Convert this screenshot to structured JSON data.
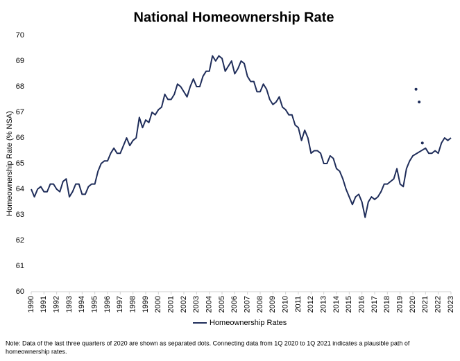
{
  "chart_data": {
    "type": "line",
    "title": "National Homeownership Rate",
    "y_label": "Homeownership Rate (% NSA)",
    "note": [
      "Note: Data of the last three quarters of 2020  are shown as separated dots. Connecting data from 1Q 2020  to 1Q 2021  indicates a plausible path of",
      "homeownership rates."
    ],
    "xlim": [
      1990,
      2023
    ],
    "xticks": [
      1990,
      1991,
      1992,
      1993,
      1994,
      1995,
      1996,
      1997,
      1998,
      1999,
      2000,
      2001,
      2002,
      2003,
      2004,
      2005,
      2006,
      2007,
      2008,
      2009,
      2010,
      2011,
      2012,
      2013,
      2014,
      2015,
      2016,
      2017,
      2018,
      2019,
      2020,
      2021,
      2022,
      2023
    ],
    "ylim": [
      60,
      70
    ],
    "yticks": [
      60,
      61,
      62,
      63,
      64,
      65,
      66,
      67,
      68,
      69,
      70
    ],
    "legend": "bottom",
    "series": [
      {
        "name": "Homeownership Rates",
        "color": "#1f2d5a",
        "style": "line",
        "x": [
          1990,
          1990.25,
          1990.5,
          1990.75,
          1991,
          1991.25,
          1991.5,
          1991.75,
          1992,
          1992.25,
          1992.5,
          1992.75,
          1993,
          1993.25,
          1993.5,
          1993.75,
          1994,
          1994.25,
          1994.5,
          1994.75,
          1995,
          1995.25,
          1995.5,
          1995.75,
          1996,
          1996.25,
          1996.5,
          1996.75,
          1997,
          1997.25,
          1997.5,
          1997.75,
          1998,
          1998.25,
          1998.5,
          1998.75,
          1999,
          1999.25,
          1999.5,
          1999.75,
          2000,
          2000.25,
          2000.5,
          2000.75,
          2001,
          2001.25,
          2001.5,
          2001.75,
          2002,
          2002.25,
          2002.5,
          2002.75,
          2003,
          2003.25,
          2003.5,
          2003.75,
          2004,
          2004.25,
          2004.5,
          2004.75,
          2005,
          2005.25,
          2005.5,
          2005.75,
          2006,
          2006.25,
          2006.5,
          2006.75,
          2007,
          2007.25,
          2007.5,
          2007.75,
          2008,
          2008.25,
          2008.5,
          2008.75,
          2009,
          2009.25,
          2009.5,
          2009.75,
          2010,
          2010.25,
          2010.5,
          2010.75,
          2011,
          2011.25,
          2011.5,
          2011.75,
          2012,
          2012.25,
          2012.5,
          2012.75,
          2013,
          2013.25,
          2013.5,
          2013.75,
          2014,
          2014.25,
          2014.5,
          2014.75,
          2015,
          2015.25,
          2015.5,
          2015.75,
          2016,
          2016.25,
          2016.5,
          2016.75,
          2017,
          2017.25,
          2017.5,
          2017.75,
          2018,
          2018.25,
          2018.5,
          2018.75,
          2019,
          2019.25,
          2019.5,
          2019.75,
          2020,
          2021,
          2021.25,
          2021.5,
          2021.75,
          2022,
          2022.25,
          2022.5,
          2022.75,
          2023
        ],
        "values": [
          64.0,
          63.7,
          64.0,
          64.1,
          63.9,
          63.9,
          64.2,
          64.2,
          64.0,
          63.9,
          64.3,
          64.4,
          63.7,
          63.9,
          64.2,
          64.2,
          63.8,
          63.8,
          64.1,
          64.2,
          64.2,
          64.7,
          65.0,
          65.1,
          65.1,
          65.4,
          65.6,
          65.4,
          65.4,
          65.7,
          66.0,
          65.7,
          65.9,
          66.0,
          66.8,
          66.4,
          66.7,
          66.6,
          67.0,
          66.9,
          67.1,
          67.2,
          67.7,
          67.5,
          67.5,
          67.7,
          68.1,
          68.0,
          67.8,
          67.6,
          68.0,
          68.3,
          68.0,
          68.0,
          68.4,
          68.6,
          68.6,
          69.2,
          69.0,
          69.2,
          69.1,
          68.6,
          68.8,
          69.0,
          68.5,
          68.7,
          69.0,
          68.9,
          68.4,
          68.2,
          68.2,
          67.8,
          67.8,
          68.1,
          67.9,
          67.5,
          67.3,
          67.4,
          67.6,
          67.2,
          67.1,
          66.9,
          66.9,
          66.5,
          66.4,
          65.9,
          66.3,
          66.0,
          65.4,
          65.5,
          65.5,
          65.4,
          65.0,
          65.0,
          65.3,
          65.2,
          64.8,
          64.7,
          64.4,
          64.0,
          63.7,
          63.4,
          63.7,
          63.8,
          63.5,
          62.9,
          63.5,
          63.7,
          63.6,
          63.7,
          63.9,
          64.2,
          64.2,
          64.3,
          64.4,
          64.8,
          64.2,
          64.1,
          64.8,
          65.1,
          65.3,
          65.6,
          65.4,
          65.4,
          65.5,
          65.4,
          65.8,
          66.0,
          65.9,
          66.0
        ]
      },
      {
        "color": "#1f2d5a",
        "style": "dots",
        "x": [
          2020.25,
          2020.5,
          2020.75
        ],
        "values": [
          67.9,
          67.4,
          65.8
        ]
      }
    ]
  }
}
